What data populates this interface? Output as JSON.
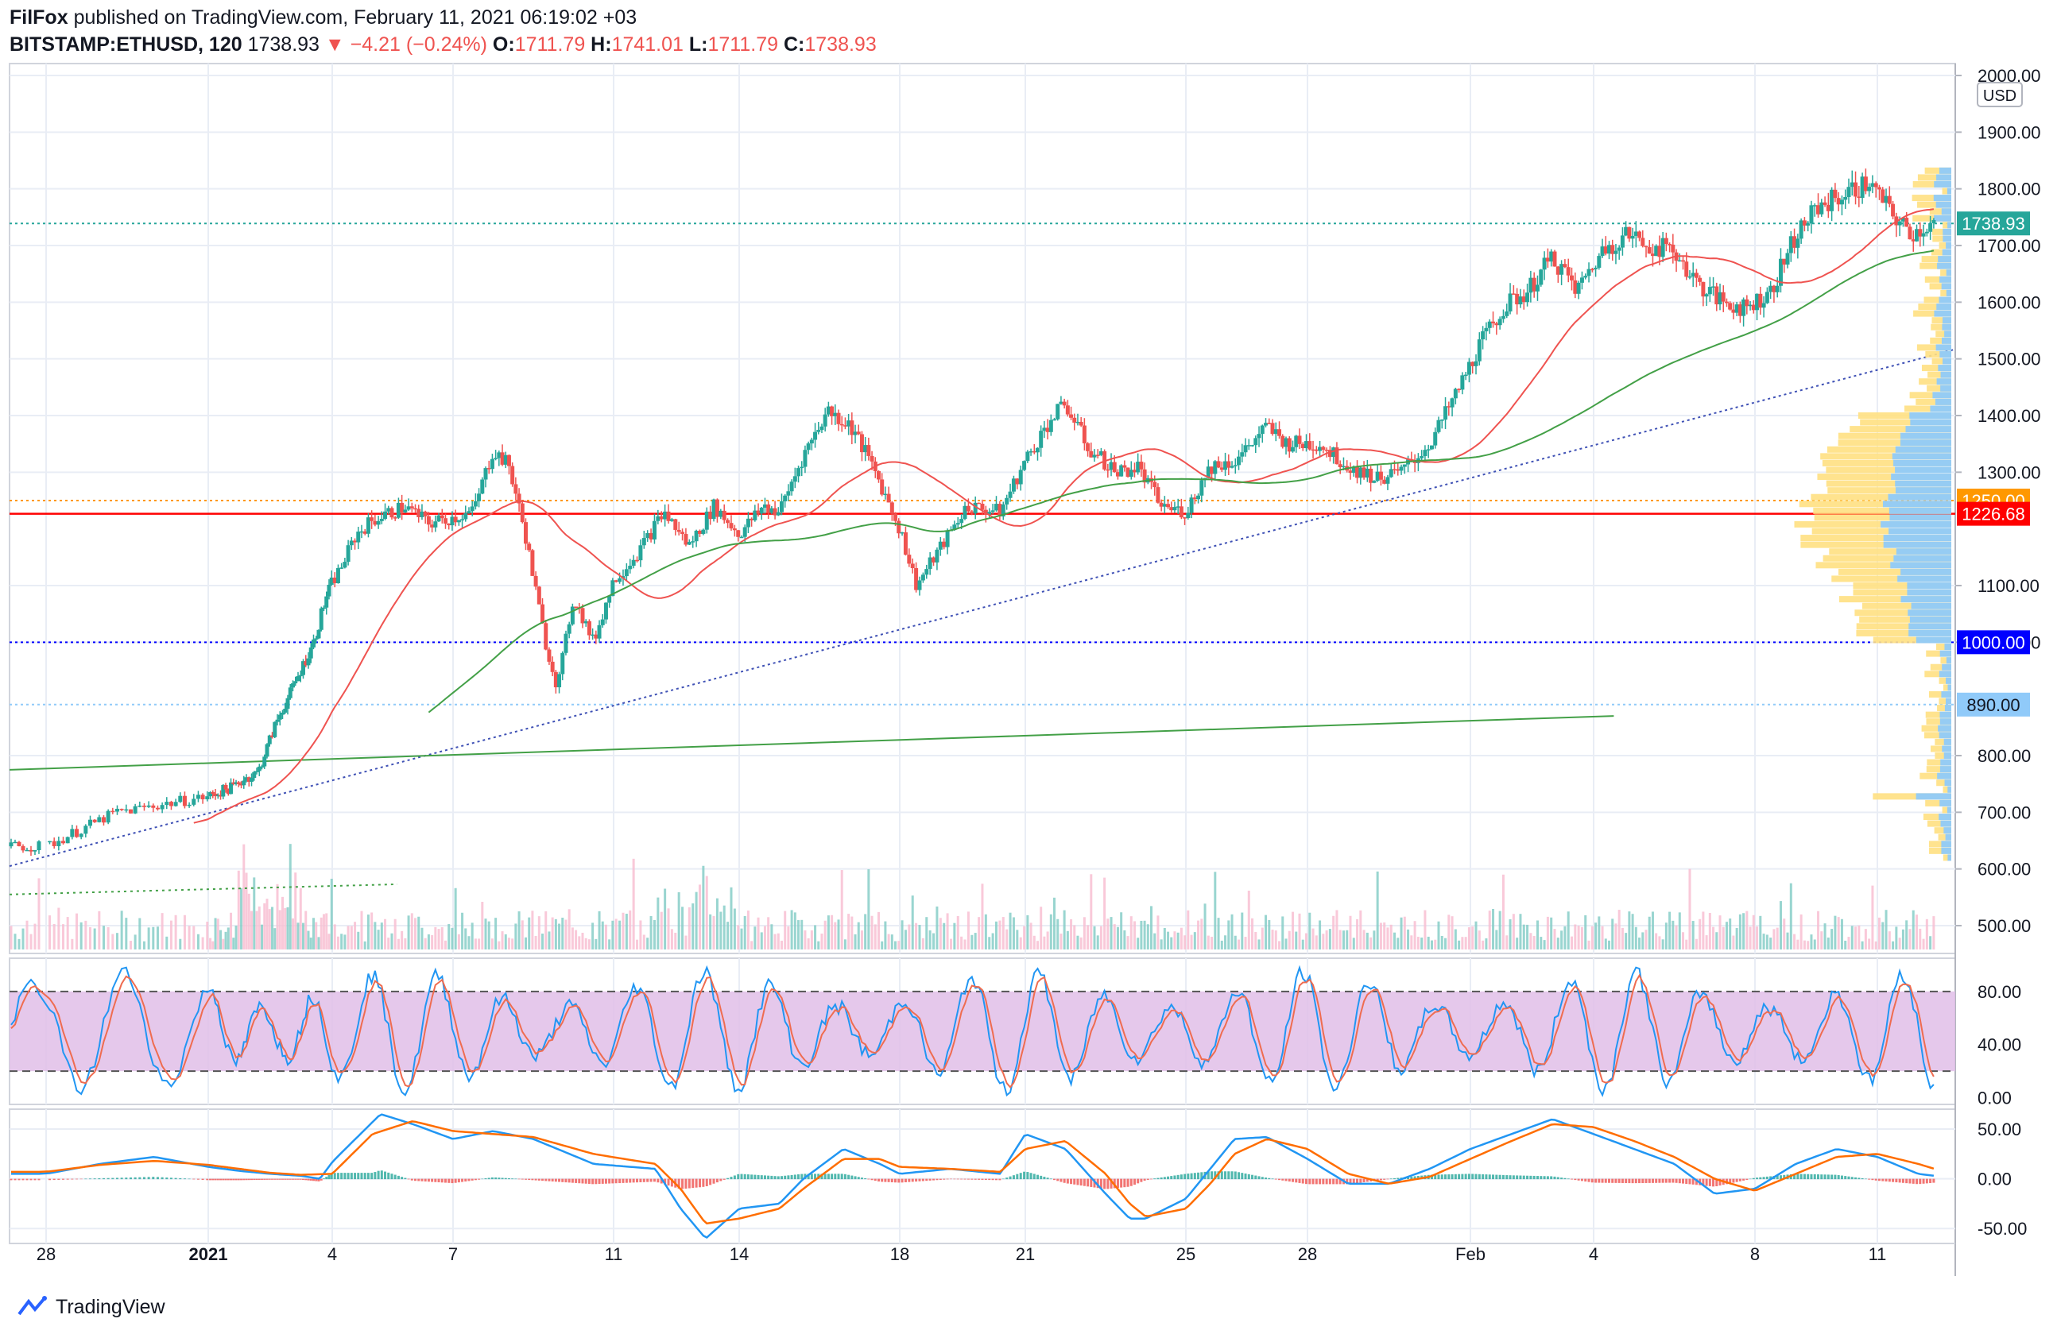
{
  "header": {
    "publisher": "FilFox",
    "published_text": "published on TradingView.com, February 11, 2021 06:19:02 +03",
    "symbol": "BITSTAMP:ETHUSD, 120",
    "last": "1738.93",
    "change": "−4.21 (−0.24%)",
    "o_label": "O:",
    "o_value": "1711.79",
    "h_label": "H:",
    "h_value": "1741.01",
    "l_label": "L:",
    "l_value": "1711.79",
    "c_label": "C:",
    "c_value": "1738.93"
  },
  "footer": {
    "brand": "TradingView"
  },
  "colors": {
    "up": "#26a69a",
    "down": "#ef5350",
    "ma": "#ef5350",
    "ma_long": "#43a047",
    "trend": "#3f51b5",
    "stoch_band": "#e1bee7",
    "macd": "#2196f3",
    "signal": "#ff6d00",
    "vp_up": "#90caf9",
    "vp_down": "#ffe082"
  },
  "chart_data": [
    {
      "type": "candlestick",
      "currency_label": "USD",
      "x_ticks": [
        "28",
        "2021",
        "4",
        "7",
        "11",
        "14",
        "18",
        "21",
        "25",
        "28",
        "Feb",
        "4",
        "8",
        "11"
      ],
      "y_ticks": [
        "2000.00",
        "1900.00",
        "1800.00",
        "1700.00",
        "1600.00",
        "1500.00",
        "1400.00",
        "1300.00",
        "1100.00",
        "1000.00",
        "800.00",
        "700.00",
        "600.00",
        "500.00"
      ],
      "ylim": [
        450,
        2010
      ],
      "close_path": [
        [
          0,
          640
        ],
        [
          1.3,
          700
        ],
        [
          3,
          728
        ],
        [
          3.8,
          745
        ],
        [
          4.2,
          760
        ],
        [
          4.6,
          770
        ],
        [
          5.2,
          860
        ],
        [
          5.6,
          905
        ],
        [
          6.4,
          1000
        ],
        [
          6.8,
          1080
        ],
        [
          7.2,
          1130
        ],
        [
          7.6,
          1190
        ],
        [
          8,
          1215
        ],
        [
          8.8,
          1240
        ],
        [
          9.4,
          1210
        ],
        [
          10,
          1220
        ],
        [
          10.5,
          1230
        ],
        [
          11,
          1340
        ],
        [
          11.4,
          1310
        ],
        [
          11.8,
          1190
        ],
        [
          12.3,
          1000
        ],
        [
          12.6,
          920
        ],
        [
          13,
          1080
        ],
        [
          13.5,
          1000
        ],
        [
          14,
          1110
        ],
        [
          14.6,
          1160
        ],
        [
          15.2,
          1230
        ],
        [
          15.8,
          1170
        ],
        [
          16.4,
          1240
        ],
        [
          17,
          1190
        ],
        [
          17.6,
          1240
        ],
        [
          18,
          1230
        ],
        [
          18.6,
          1330
        ],
        [
          19.2,
          1410
        ],
        [
          19.8,
          1380
        ],
        [
          20.4,
          1300
        ],
        [
          21,
          1200
        ],
        [
          21.4,
          1100
        ],
        [
          22,
          1170
        ],
        [
          22.6,
          1240
        ],
        [
          23.4,
          1230
        ],
        [
          24,
          1320
        ],
        [
          24.6,
          1390
        ],
        [
          25,
          1420
        ],
        [
          25.6,
          1340
        ],
        [
          26.3,
          1300
        ],
        [
          26.8,
          1310
        ],
        [
          27.4,
          1240
        ],
        [
          28,
          1230
        ],
        [
          28.6,
          1310
        ],
        [
          29.2,
          1320
        ],
        [
          30,
          1380
        ],
        [
          30.5,
          1350
        ],
        [
          31.3,
          1350
        ],
        [
          32,
          1310
        ],
        [
          32.7,
          1290
        ],
        [
          33.3,
          1300
        ],
        [
          34,
          1350
        ],
        [
          34.6,
          1430
        ],
        [
          35.2,
          1520
        ],
        [
          35.8,
          1590
        ],
        [
          36.4,
          1620
        ],
        [
          37,
          1680
        ],
        [
          37.6,
          1620
        ],
        [
          38.2,
          1690
        ],
        [
          38.8,
          1720
        ],
        [
          39.4,
          1700
        ],
        [
          40,
          1690
        ],
        [
          40.6,
          1630
        ],
        [
          41.2,
          1600
        ],
        [
          41.8,
          1590
        ],
        [
          42.4,
          1620
        ],
        [
          43,
          1720
        ],
        [
          43.6,
          1770
        ],
        [
          44.2,
          1790
        ],
        [
          44.8,
          1810
        ],
        [
          45.3,
          1760
        ],
        [
          45.8,
          1720
        ],
        [
          46.4,
          1739
        ]
      ],
      "volume_note": "volume histogram with moving average at bottom of price pane",
      "horizontal_levels": [
        {
          "value": 1738.93,
          "label": "1738.93",
          "color": "#26a69a"
        },
        {
          "value": 1250.0,
          "label": "1250.00",
          "color": "#ff9800"
        },
        {
          "value": 1226.68,
          "label": "1226.68",
          "color": "#ff0000"
        },
        {
          "value": 1000.0,
          "label": "1000.00",
          "color": "#0000ff"
        },
        {
          "value": 890.0,
          "label": "890.00",
          "color": "#90caf9"
        }
      ],
      "trendlines": [
        {
          "name": "rising support",
          "from": [
            0,
            605
          ],
          "to": [
            48.3,
            1517
          ],
          "style": "dotted"
        },
        {
          "name": "long trend",
          "from": [
            0,
            775
          ],
          "to": [
            38.5,
            870
          ],
          "style": "solid"
        }
      ]
    },
    {
      "type": "line",
      "indicator": "stochastic",
      "y_ticks": [
        "80.00",
        "40.00",
        "0.00"
      ],
      "ylim": [
        -5,
        105
      ],
      "band": [
        20,
        80
      ]
    },
    {
      "type": "line",
      "indicator": "macd",
      "y_ticks": [
        "50.00",
        "0.00",
        "-50.00"
      ],
      "ylim": [
        -65,
        70
      ],
      "macd": [
        [
          0,
          5
        ],
        [
          1,
          15
        ],
        [
          2,
          22
        ],
        [
          3,
          12
        ],
        [
          4,
          8
        ],
        [
          5,
          5
        ],
        [
          6,
          3
        ],
        [
          6.6,
          0
        ],
        [
          7.2,
          25
        ],
        [
          8.2,
          65
        ],
        [
          9,
          55
        ],
        [
          10,
          40
        ],
        [
          11,
          48
        ],
        [
          12,
          40
        ],
        [
          13.5,
          15
        ],
        [
          15,
          10
        ],
        [
          15.6,
          -30
        ],
        [
          16.2,
          -60
        ],
        [
          17,
          -30
        ],
        [
          18,
          -25
        ],
        [
          18.6,
          0
        ],
        [
          19.6,
          30
        ],
        [
          20.5,
          15
        ],
        [
          21,
          5
        ],
        [
          22.2,
          10
        ],
        [
          23.4,
          5
        ],
        [
          24,
          45
        ],
        [
          25,
          30
        ],
        [
          26,
          -15
        ],
        [
          26.6,
          -40
        ],
        [
          27,
          -40
        ],
        [
          28,
          -20
        ],
        [
          28.6,
          10
        ],
        [
          29.2,
          40
        ],
        [
          30,
          42
        ],
        [
          31,
          20
        ],
        [
          32,
          -5
        ],
        [
          33,
          -5
        ],
        [
          34,
          10
        ],
        [
          35,
          30
        ],
        [
          36,
          45
        ],
        [
          37,
          60
        ],
        [
          38,
          45
        ],
        [
          39,
          30
        ],
        [
          40,
          15
        ],
        [
          41,
          -15
        ],
        [
          42,
          -10
        ],
        [
          43,
          15
        ],
        [
          44,
          30
        ],
        [
          45,
          22
        ],
        [
          46,
          5
        ],
        [
          46.4,
          3
        ]
      ],
      "signal": [
        [
          0,
          7
        ],
        [
          1,
          14
        ],
        [
          2,
          18
        ],
        [
          3,
          14
        ],
        [
          4,
          10
        ],
        [
          5,
          6
        ],
        [
          6,
          4
        ],
        [
          7,
          5
        ],
        [
          8,
          45
        ],
        [
          9,
          58
        ],
        [
          10,
          48
        ],
        [
          11,
          45
        ],
        [
          12,
          42
        ],
        [
          13.5,
          25
        ],
        [
          15,
          15
        ],
        [
          15.6,
          -10
        ],
        [
          16.2,
          -45
        ],
        [
          17,
          -40
        ],
        [
          18,
          -30
        ],
        [
          18.6,
          -10
        ],
        [
          19.6,
          20
        ],
        [
          20.5,
          20
        ],
        [
          21,
          12
        ],
        [
          22.2,
          10
        ],
        [
          23.4,
          7
        ],
        [
          24,
          30
        ],
        [
          25,
          38
        ],
        [
          26,
          5
        ],
        [
          26.6,
          -25
        ],
        [
          27,
          -38
        ],
        [
          28,
          -30
        ],
        [
          28.6,
          -5
        ],
        [
          29.2,
          25
        ],
        [
          30,
          40
        ],
        [
          31,
          30
        ],
        [
          32,
          5
        ],
        [
          33,
          -5
        ],
        [
          34,
          2
        ],
        [
          35,
          20
        ],
        [
          36,
          38
        ],
        [
          37,
          55
        ],
        [
          38,
          52
        ],
        [
          39,
          38
        ],
        [
          40,
          22
        ],
        [
          41,
          0
        ],
        [
          42,
          -12
        ],
        [
          43,
          5
        ],
        [
          44,
          22
        ],
        [
          45,
          25
        ],
        [
          46,
          15
        ],
        [
          46.4,
          10
        ]
      ]
    }
  ]
}
